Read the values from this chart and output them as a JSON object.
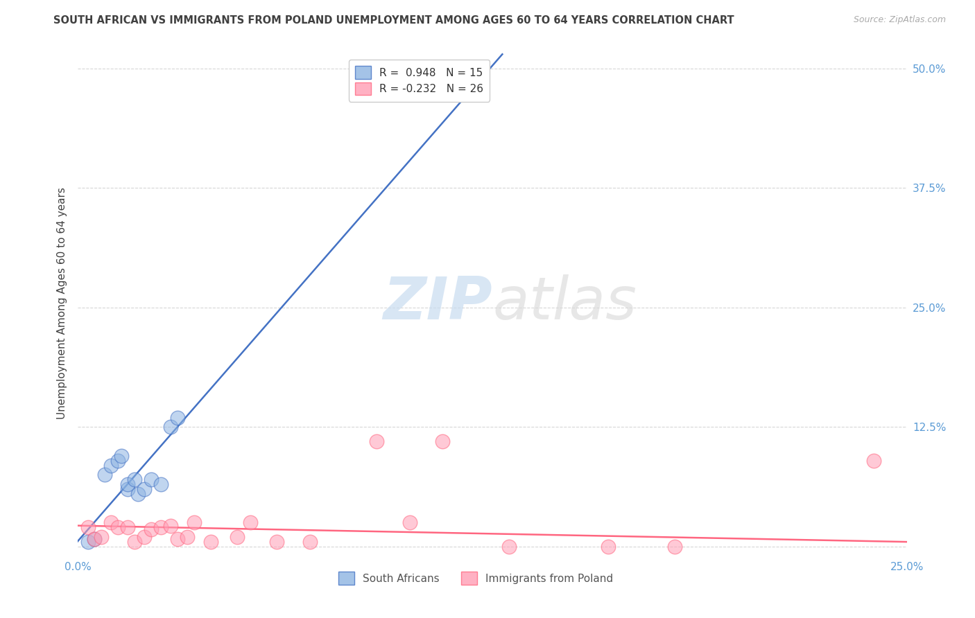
{
  "title": "SOUTH AFRICAN VS IMMIGRANTS FROM POLAND UNEMPLOYMENT AMONG AGES 60 TO 64 YEARS CORRELATION CHART",
  "source": "Source: ZipAtlas.com",
  "ylabel": "Unemployment Among Ages 60 to 64 years",
  "xlim": [
    0.0,
    0.25
  ],
  "ylim": [
    -0.01,
    0.52
  ],
  "xticks": [
    0.0,
    0.05,
    0.1,
    0.15,
    0.2,
    0.25
  ],
  "xticklabels": [
    "0.0%",
    "",
    "",
    "",
    "",
    "25.0%"
  ],
  "yticks": [
    0.0,
    0.125,
    0.25,
    0.375,
    0.5
  ],
  "yticklabels_right": [
    "",
    "12.5%",
    "25.0%",
    "37.5%",
    "50.0%"
  ],
  "watermark_zip": "ZIP",
  "watermark_atlas": "atlas",
  "legend_blue_r": "0.948",
  "legend_blue_n": "15",
  "legend_pink_r": "-0.232",
  "legend_pink_n": "26",
  "legend_label_blue": "South Africans",
  "legend_label_pink": "Immigrants from Poland",
  "blue_scatter_color": "#8DB4E2",
  "blue_edge_color": "#4472C4",
  "pink_scatter_color": "#FF9EB5",
  "pink_edge_color": "#FF6680",
  "blue_line_color": "#4472C4",
  "pink_line_color": "#FF6680",
  "grid_color": "#CCCCCC",
  "title_color": "#404040",
  "axis_label_color": "#404040",
  "tick_color": "#5B9BD5",
  "blue_scatter_x": [
    0.003,
    0.005,
    0.008,
    0.01,
    0.012,
    0.013,
    0.015,
    0.015,
    0.017,
    0.018,
    0.02,
    0.022,
    0.025,
    0.028,
    0.03
  ],
  "blue_scatter_y": [
    0.005,
    0.008,
    0.075,
    0.085,
    0.09,
    0.095,
    0.06,
    0.065,
    0.07,
    0.055,
    0.06,
    0.07,
    0.065,
    0.125,
    0.135
  ],
  "pink_scatter_x": [
    0.003,
    0.005,
    0.007,
    0.01,
    0.012,
    0.015,
    0.017,
    0.02,
    0.022,
    0.025,
    0.028,
    0.03,
    0.033,
    0.035,
    0.04,
    0.048,
    0.052,
    0.06,
    0.07,
    0.09,
    0.1,
    0.11,
    0.13,
    0.16,
    0.18,
    0.24
  ],
  "pink_scatter_y": [
    0.02,
    0.008,
    0.01,
    0.025,
    0.02,
    0.02,
    0.005,
    0.01,
    0.018,
    0.02,
    0.022,
    0.008,
    0.01,
    0.025,
    0.005,
    0.01,
    0.025,
    0.005,
    0.005,
    0.11,
    0.025,
    0.11,
    0.0,
    0.0,
    0.0,
    0.09
  ],
  "blue_line_x": [
    -0.002,
    0.128
  ],
  "blue_line_y": [
    -0.002,
    0.515
  ],
  "pink_line_x": [
    0.0,
    0.25
  ],
  "pink_line_y": [
    0.022,
    0.005
  ],
  "fig_width": 14.06,
  "fig_height": 8.92
}
